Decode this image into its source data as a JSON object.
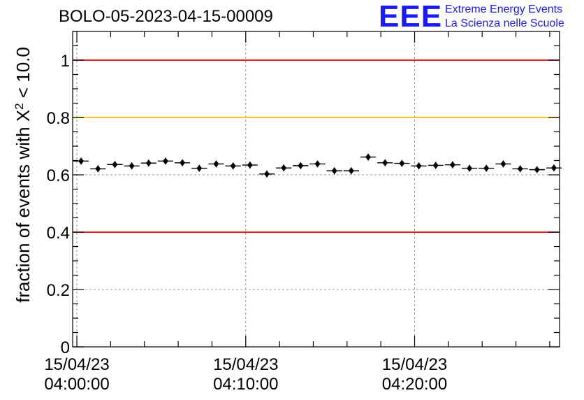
{
  "header": {
    "title": "BOLO-05-2023-04-15-00009"
  },
  "logo": {
    "mark": "EEE",
    "line1": "Extreme Energy Events",
    "line2": "La Scienza nelle Scuole",
    "color": "#1a1aff"
  },
  "chart_data": {
    "type": "scatter",
    "title": "BOLO-05-2023-04-15-00009",
    "ylabel": "fraction of events with χ² < 10.0",
    "ylabel_main": "fraction of events with X",
    "ylabel_sup": "2",
    "ylabel_tail": " < 10.0",
    "ylim": [
      0,
      1.1
    ],
    "yticks": [
      "0",
      "0.2",
      "0.4",
      "0.6",
      "0.8",
      "1"
    ],
    "ytick_values": [
      0,
      0.2,
      0.4,
      0.6,
      0.8,
      1.0
    ],
    "xlim": [
      "2023-04-15 03:59:45",
      "2023-04-15 04:28:35"
    ],
    "xticks": [
      {
        "date": "15/04/23",
        "time": "04:00:00",
        "t": "2023-04-15 04:00:00"
      },
      {
        "date": "15/04/23",
        "time": "04:10:00",
        "t": "2023-04-15 04:10:00"
      },
      {
        "date": "15/04/23",
        "time": "04:20:00",
        "t": "2023-04-15 04:20:00"
      }
    ],
    "grid": true,
    "reference_lines": [
      {
        "y": 1.0,
        "color": "#e00000"
      },
      {
        "y": 0.8,
        "color": "#ffc000"
      },
      {
        "y": 0.4,
        "color": "#e00000"
      }
    ],
    "point_color": "#000000",
    "bin_width_s": 60,
    "x": [
      "04:00:15",
      "04:01:15",
      "04:02:15",
      "04:03:15",
      "04:04:15",
      "04:05:15",
      "04:06:15",
      "04:07:15",
      "04:08:15",
      "04:09:15",
      "04:10:15",
      "04:11:15",
      "04:12:15",
      "04:13:15",
      "04:14:15",
      "04:15:15",
      "04:16:15",
      "04:17:15",
      "04:18:15",
      "04:19:15",
      "04:20:15",
      "04:21:15",
      "04:22:15",
      "04:23:15",
      "04:24:15",
      "04:25:15",
      "04:26:15",
      "04:27:15",
      "04:28:15"
    ],
    "y": [
      0.648,
      0.621,
      0.636,
      0.631,
      0.641,
      0.648,
      0.642,
      0.623,
      0.638,
      0.631,
      0.634,
      0.603,
      0.624,
      0.632,
      0.638,
      0.614,
      0.614,
      0.662,
      0.642,
      0.64,
      0.631,
      0.633,
      0.635,
      0.623,
      0.623,
      0.638,
      0.621,
      0.618,
      0.624
    ]
  }
}
